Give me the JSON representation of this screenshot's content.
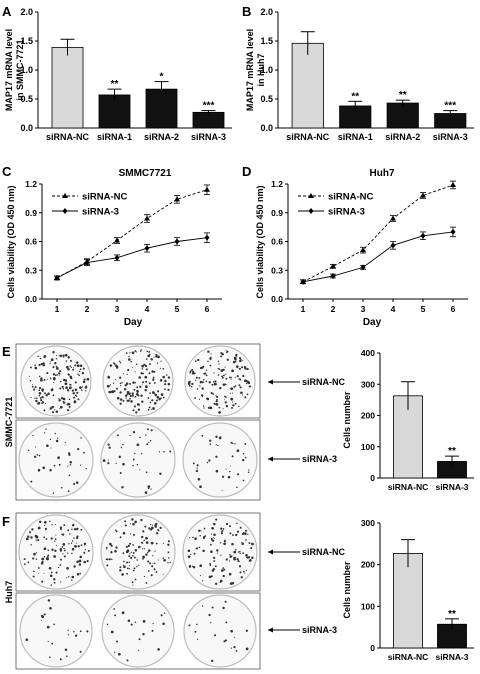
{
  "panels": {
    "A": {
      "letter": "A",
      "ylabel_1": "MAP17 mRNA level",
      "ylabel_2": "in SMMC-7721"
    },
    "B": {
      "letter": "B",
      "ylabel_1": "MAP17 mRNA level",
      "ylabel_2": "in Huh7"
    },
    "C": {
      "letter": "C",
      "title": "SMMC7721",
      "ylabel": "Cells viability (OD 450 nm)",
      "xlabel": "Day"
    },
    "D": {
      "letter": "D",
      "title": "Huh7",
      "ylabel": "Cells viability (OD 450 nm)",
      "xlabel": "Day"
    },
    "E": {
      "letter": "E",
      "row_label": "SMMC-7721",
      "arrow_top": "siRNA-NC",
      "arrow_bottom": "siRNA-3",
      "ylabel": "Cells number"
    },
    "F": {
      "letter": "F",
      "row_label": "Huh7",
      "arrow_top": "siRNA-NC",
      "arrow_bottom": "siRNA-3",
      "ylabel": "Cells number"
    }
  },
  "colors": {
    "control_bar": "#d9d9d9",
    "treated_bar": "#111111",
    "axis": "#000000"
  },
  "chart_data": [
    {
      "id": "A",
      "type": "bar",
      "categories": [
        "siRNA-NC",
        "siRNA-1",
        "siRNA-2",
        "siRNA-3"
      ],
      "values": [
        1.39,
        0.57,
        0.67,
        0.27
      ],
      "errors": [
        0.14,
        0.1,
        0.13,
        0.03
      ],
      "significance": [
        "",
        "**",
        "*",
        "***"
      ],
      "ylim": [
        0,
        2.0
      ],
      "yticks": [
        0,
        0.5,
        1.0,
        1.5,
        2.0
      ],
      "ytick_labels": [
        "0.0",
        "0.5",
        "1.0",
        "1.5",
        "2.0"
      ]
    },
    {
      "id": "B",
      "type": "bar",
      "categories": [
        "siRNA-NC",
        "siRNA-1",
        "siRNA-2",
        "siRNA-3"
      ],
      "values": [
        1.46,
        0.38,
        0.43,
        0.25
      ],
      "errors": [
        0.2,
        0.08,
        0.05,
        0.05
      ],
      "significance": [
        "",
        "**",
        "**",
        "***"
      ],
      "ylim": [
        0,
        2.0
      ],
      "yticks": [
        0,
        0.5,
        1.0,
        1.5,
        2.0
      ],
      "ytick_labels": [
        "0.0",
        "0.5",
        "1.0",
        "1.5",
        "2.0"
      ]
    },
    {
      "id": "C",
      "type": "line",
      "x": [
        1,
        2,
        3,
        4,
        5,
        6
      ],
      "series": [
        {
          "name": "siRNA-NC",
          "values": [
            0.22,
            0.39,
            0.61,
            0.84,
            1.04,
            1.14
          ],
          "errors": [
            0.02,
            0.03,
            0.03,
            0.04,
            0.04,
            0.05
          ],
          "style": "dashed",
          "marker": "triangle"
        },
        {
          "name": "siRNA-3",
          "values": [
            0.22,
            0.38,
            0.43,
            0.53,
            0.6,
            0.64
          ],
          "errors": [
            0.02,
            0.03,
            0.03,
            0.04,
            0.04,
            0.05
          ],
          "style": "solid",
          "marker": "diamond"
        }
      ],
      "ylim": [
        0,
        1.2
      ],
      "yticks": [
        0,
        0.3,
        0.6,
        0.9,
        1.2
      ],
      "ytick_labels": [
        "0.0",
        "0.3",
        "0.6",
        "0.9",
        "1.2"
      ],
      "legend": "top-left"
    },
    {
      "id": "D",
      "type": "line",
      "x": [
        1,
        2,
        3,
        4,
        5,
        6
      ],
      "series": [
        {
          "name": "siRNA-NC",
          "values": [
            0.18,
            0.34,
            0.51,
            0.84,
            1.08,
            1.19
          ],
          "errors": [
            0.02,
            0.02,
            0.03,
            0.03,
            0.03,
            0.04
          ],
          "style": "dashed",
          "marker": "triangle"
        },
        {
          "name": "siRNA-3",
          "values": [
            0.18,
            0.24,
            0.33,
            0.56,
            0.66,
            0.7
          ],
          "errors": [
            0.02,
            0.02,
            0.02,
            0.04,
            0.04,
            0.05
          ],
          "style": "solid",
          "marker": "diamond"
        }
      ],
      "ylim": [
        0,
        1.2
      ],
      "yticks": [
        0,
        0.3,
        0.6,
        0.9,
        1.2
      ],
      "ytick_labels": [
        "0.0",
        "0.3",
        "0.6",
        "0.9",
        "1.2"
      ],
      "legend": "top-left"
    },
    {
      "id": "E",
      "type": "bar",
      "categories": [
        "siRNA-NC",
        "siRNA-3"
      ],
      "values": [
        263,
        53
      ],
      "errors": [
        45,
        17
      ],
      "significance": [
        "",
        "**"
      ],
      "ylim": [
        0,
        400
      ],
      "yticks": [
        0,
        100,
        200,
        300,
        400
      ],
      "ytick_labels": [
        "0",
        "100",
        "200",
        "300",
        "400"
      ]
    },
    {
      "id": "F",
      "type": "bar",
      "categories": [
        "siRNA-NC",
        "siRNA-3"
      ],
      "values": [
        227,
        57
      ],
      "errors": [
        33,
        13
      ],
      "significance": [
        "",
        "**"
      ],
      "ylim": [
        0,
        300
      ],
      "yticks": [
        0,
        100,
        200,
        300
      ],
      "ytick_labels": [
        "0",
        "100",
        "200",
        "300"
      ]
    }
  ]
}
